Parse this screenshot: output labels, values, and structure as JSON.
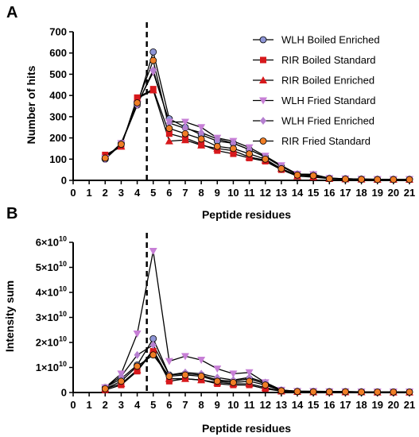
{
  "chart_data": [
    {
      "type": "line",
      "panel": "A",
      "xlabel": "Peptide residues",
      "ylabel": "Number of hits",
      "xlim": [
        0,
        21
      ],
      "ylim": [
        0,
        700
      ],
      "x_ticks": [
        "0",
        "1",
        "2",
        "3",
        "4",
        "5",
        "6",
        "7",
        "8",
        "9",
        "10",
        "11",
        "12",
        "13",
        "14",
        "15",
        "16",
        "17",
        "18",
        "19",
        "20",
        "21"
      ],
      "y_ticks": [
        "0",
        "100",
        "200",
        "300",
        "400",
        "500",
        "600",
        "700"
      ],
      "dashed_line_x": 4.6,
      "x": [
        2,
        3,
        4,
        5,
        6,
        7,
        8,
        9,
        10,
        11,
        12,
        13,
        14,
        15,
        16,
        17,
        18,
        19,
        20,
        21
      ],
      "legend_position": "top-right",
      "series": [
        {
          "name": "WLH Boiled Enriched",
          "marker": "circle",
          "color": "#8e95d6",
          "values": [
            100,
            175,
            355,
            605,
            290,
            250,
            215,
            185,
            175,
            145,
            110,
            65,
            30,
            28,
            10,
            8,
            6,
            5,
            5,
            5
          ]
        },
        {
          "name": "RIR Boiled Standard",
          "marker": "square",
          "color": "#d7191c",
          "values": [
            120,
            160,
            390,
            430,
            220,
            200,
            170,
            140,
            125,
            105,
            90,
            50,
            20,
            15,
            8,
            6,
            5,
            4,
            4,
            4
          ]
        },
        {
          "name": "RIR Boiled Enriched",
          "marker": "triangle-up",
          "color": "#d7191c",
          "values": [
            115,
            160,
            385,
            425,
            185,
            190,
            165,
            150,
            140,
            110,
            95,
            55,
            20,
            18,
            8,
            6,
            5,
            4,
            4,
            4
          ]
        },
        {
          "name": "WLH Fried Standard",
          "marker": "triangle-down",
          "color": "#c77fd6",
          "values": [
            105,
            175,
            360,
            510,
            275,
            275,
            250,
            200,
            185,
            155,
            115,
            70,
            30,
            28,
            10,
            8,
            6,
            5,
            5,
            5
          ]
        },
        {
          "name": "WLH Fried Enriched",
          "marker": "diamond",
          "color": "#b57fd0",
          "values": [
            100,
            170,
            355,
            520,
            270,
            245,
            225,
            195,
            175,
            145,
            110,
            65,
            28,
            26,
            10,
            8,
            6,
            5,
            5,
            5
          ]
        },
        {
          "name": "RIR Fried Standard",
          "marker": "circle",
          "color": "#f07e26",
          "values": [
            105,
            170,
            365,
            565,
            245,
            220,
            195,
            160,
            150,
            125,
            100,
            55,
            25,
            22,
            8,
            6,
            5,
            4,
            4,
            4
          ]
        }
      ]
    },
    {
      "type": "line",
      "panel": "B",
      "xlabel": "Peptide residues",
      "ylabel": "Intensity sum",
      "xlim": [
        0,
        21
      ],
      "ylim": [
        0,
        6
      ],
      "x_ticks": [
        "0",
        "1",
        "2",
        "3",
        "4",
        "5",
        "6",
        "7",
        "8",
        "9",
        "10",
        "11",
        "12",
        "13",
        "14",
        "15",
        "16",
        "17",
        "18",
        "19",
        "20",
        "21"
      ],
      "y_tick_mantissa": [
        "0",
        "1×10",
        "2×10",
        "3×10",
        "4×10",
        "5×10",
        "6×10"
      ],
      "y_tick_exponent": "10",
      "dashed_line_x": 4.6,
      "x": [
        2,
        3,
        4,
        5,
        6,
        7,
        8,
        9,
        10,
        11,
        12,
        13,
        14,
        15,
        16,
        17,
        18,
        19,
        20,
        21
      ],
      "series": [
        {
          "name": "WLH Boiled Enriched",
          "marker": "circle",
          "color": "#8e95d6",
          "values": [
            0.2,
            0.55,
            1.1,
            2.15,
            0.7,
            0.75,
            0.7,
            0.5,
            0.45,
            0.55,
            0.35,
            0.08,
            0.05,
            0.04,
            0.03,
            0.03,
            0.03,
            0.02,
            0.02,
            0.02
          ]
        },
        {
          "name": "RIR Boiled Standard",
          "marker": "square",
          "color": "#d7191c",
          "values": [
            0.1,
            0.3,
            0.85,
            1.65,
            0.45,
            0.55,
            0.5,
            0.35,
            0.3,
            0.3,
            0.15,
            0.05,
            0.03,
            0.02,
            0.02,
            0.02,
            0.02,
            0.01,
            0.01,
            0.01
          ]
        },
        {
          "name": "RIR Boiled Enriched",
          "marker": "triangle-up",
          "color": "#d7191c",
          "values": [
            0.15,
            0.35,
            0.9,
            1.7,
            0.55,
            0.55,
            0.5,
            0.4,
            0.35,
            0.35,
            0.2,
            0.05,
            0.03,
            0.02,
            0.02,
            0.02,
            0.02,
            0.01,
            0.01,
            0.01
          ]
        },
        {
          "name": "WLH Fried Standard",
          "marker": "triangle-down",
          "color": "#c77fd6",
          "values": [
            0.2,
            0.75,
            2.35,
            5.65,
            1.25,
            1.45,
            1.3,
            0.95,
            0.75,
            0.8,
            0.4,
            0.1,
            0.05,
            0.05,
            0.04,
            0.04,
            0.03,
            0.03,
            0.03,
            0.03
          ]
        },
        {
          "name": "WLH Fried Enriched",
          "marker": "diamond",
          "color": "#b57fd0",
          "values": [
            0.2,
            0.65,
            1.5,
            1.9,
            0.7,
            0.8,
            0.75,
            0.6,
            0.5,
            0.6,
            0.4,
            0.1,
            0.05,
            0.04,
            0.03,
            0.03,
            0.03,
            0.02,
            0.02,
            0.02
          ]
        },
        {
          "name": "RIR Fried Standard",
          "marker": "circle",
          "color": "#f07e26",
          "values": [
            0.15,
            0.45,
            1.05,
            1.5,
            0.65,
            0.7,
            0.65,
            0.45,
            0.4,
            0.45,
            0.3,
            0.07,
            0.04,
            0.03,
            0.03,
            0.03,
            0.02,
            0.02,
            0.02,
            0.02
          ]
        }
      ]
    }
  ]
}
